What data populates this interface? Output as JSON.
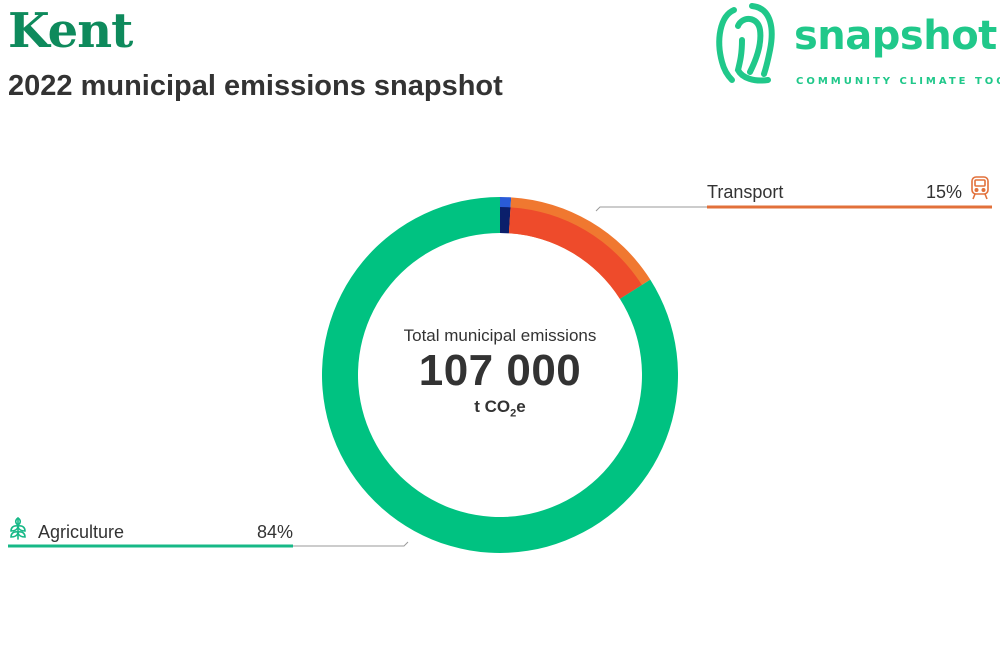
{
  "header": {
    "title": "Kent",
    "subtitle": "2022 municipal emissions snapshot"
  },
  "logo": {
    "word": "snapshot",
    "tagline": "COMMUNITY CLIMATE TOOL"
  },
  "center": {
    "label": "Total municipal emissions",
    "value": "107 000",
    "unit_main": "t CO",
    "unit_sub": "2",
    "unit_end": "e"
  },
  "chart_data": {
    "type": "donut",
    "total": 107000,
    "unit": "t CO2e",
    "segments": [
      {
        "name": "",
        "percent": 1,
        "color": "#2a5bd7",
        "inner_color": "#0b1f6b"
      },
      {
        "name": "Transport",
        "percent": 15,
        "color": "#f07830",
        "inner_color": "#ee4b2b"
      },
      {
        "name": "Agriculture",
        "percent": 84,
        "color": "#00c281",
        "inner_color": "#00c281"
      }
    ],
    "labels": [
      {
        "name": "Transport",
        "percent_label": "15%",
        "icon": "train-icon",
        "color": "#e2703a",
        "side": "right"
      },
      {
        "name": "Agriculture",
        "percent_label": "84%",
        "icon": "wheat-icon",
        "color": "#17b887",
        "side": "left"
      }
    ]
  },
  "colors": {
    "brand": "#20c88a",
    "title": "#0e8a5c",
    "text": "#333333"
  }
}
